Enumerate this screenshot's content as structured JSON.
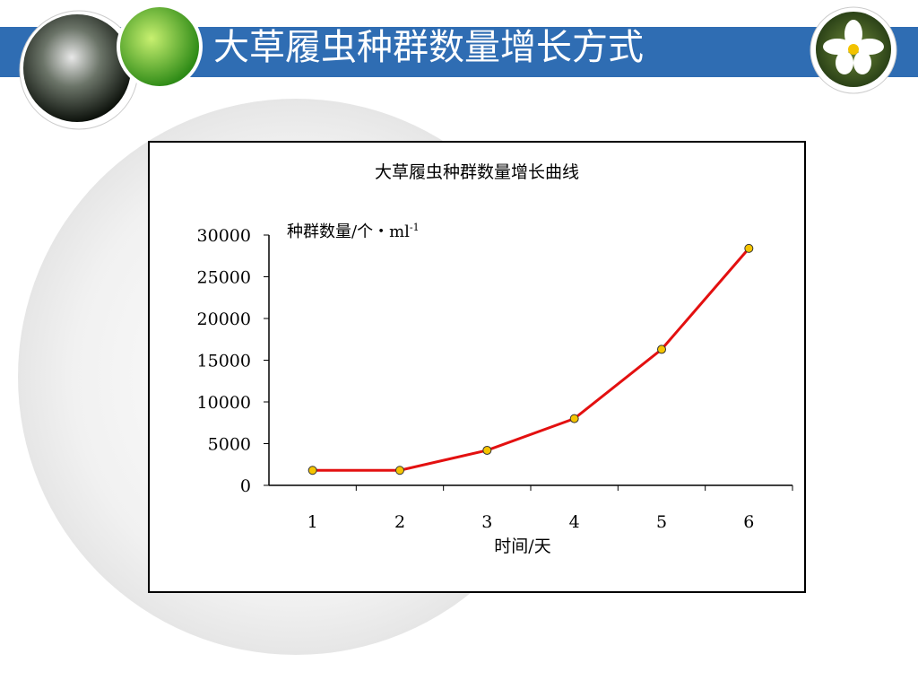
{
  "slide": {
    "title": "大草履虫种群数量增长方式"
  },
  "chart_data": {
    "type": "line",
    "title": "大草履虫种群数量增长曲线",
    "y_label": "种群数量/个・ml",
    "y_label_sup": "-1",
    "x_label": "时间/天",
    "categories": [
      "1",
      "2",
      "3",
      "4",
      "5",
      "6"
    ],
    "series": [
      {
        "name": "大草履虫",
        "color": "#e31010",
        "marker_color": "#f5c400",
        "values": [
          1800,
          1800,
          4200,
          8000,
          16300,
          28400
        ]
      }
    ],
    "ylim": [
      0,
      30000
    ],
    "yticks": [
      0,
      5000,
      10000,
      15000,
      20000,
      25000,
      30000
    ],
    "grid": false
  }
}
